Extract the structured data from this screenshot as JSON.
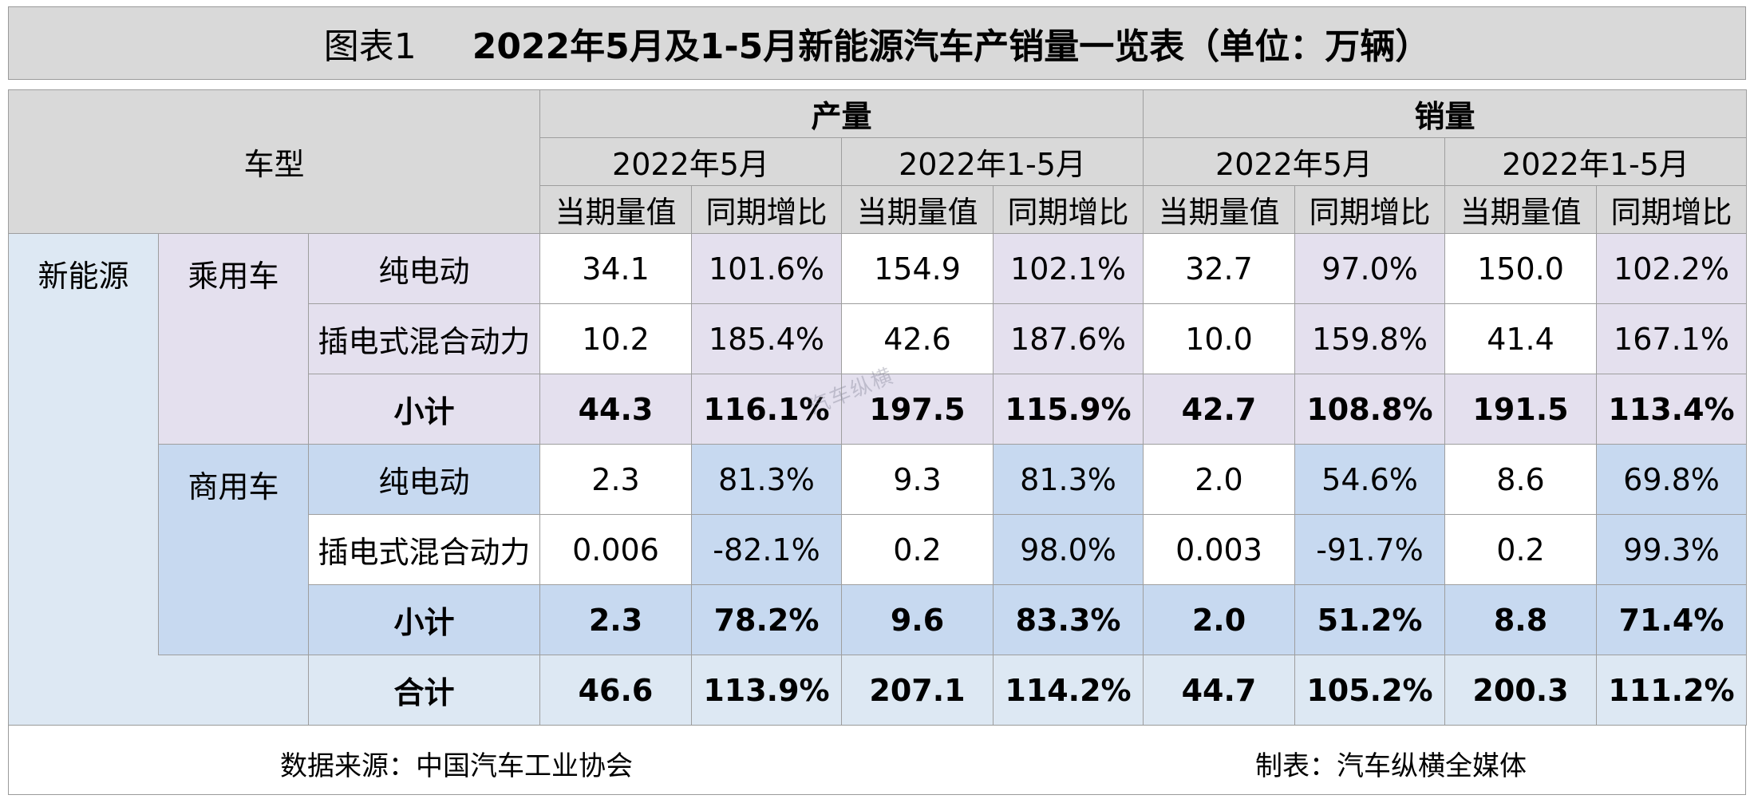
{
  "title": {
    "label": "图表1",
    "text": "2022年5月及1-5月新能源汽车产销量一览表（单位：万辆）"
  },
  "header": {
    "vehicle_type": "车型",
    "production": "产量",
    "sales": "销量",
    "period_may": "2022年5月",
    "period_jan_may": "2022年1-5月",
    "current_value": "当期量值",
    "yoy": "同期增比"
  },
  "groups": {
    "nev": "新能源",
    "passenger": "乘用车",
    "commercial": "商用车",
    "bev": "纯电动",
    "phev": "插电式混合动力",
    "subtotal": "小计",
    "total": "合计"
  },
  "rows": {
    "pass_bev": [
      "34.1",
      "101.6%",
      "154.9",
      "102.1%",
      "32.7",
      "97.0%",
      "150.0",
      "102.2%"
    ],
    "pass_phev": [
      "10.2",
      "185.4%",
      "42.6",
      "187.6%",
      "10.0",
      "159.8%",
      "41.4",
      "167.1%"
    ],
    "pass_sub": [
      "44.3",
      "116.1%",
      "197.5",
      "115.9%",
      "42.7",
      "108.8%",
      "191.5",
      "113.4%"
    ],
    "comm_bev": [
      "2.3",
      "81.3%",
      "9.3",
      "81.3%",
      "2.0",
      "54.6%",
      "8.6",
      "69.8%"
    ],
    "comm_phev": [
      "0.006",
      "-82.1%",
      "0.2",
      "98.0%",
      "0.003",
      "-91.7%",
      "0.2",
      "99.3%"
    ],
    "comm_sub": [
      "2.3",
      "78.2%",
      "9.6",
      "83.3%",
      "2.0",
      "51.2%",
      "8.8",
      "71.4%"
    ],
    "total": [
      "46.6",
      "113.9%",
      "207.1",
      "114.2%",
      "44.7",
      "105.2%",
      "200.3",
      "111.2%"
    ]
  },
  "footer": {
    "source": "数据来源：中国汽车工业协会",
    "maker": "制表：汽车纵横全媒体"
  },
  "watermark": "汽车纵横"
}
